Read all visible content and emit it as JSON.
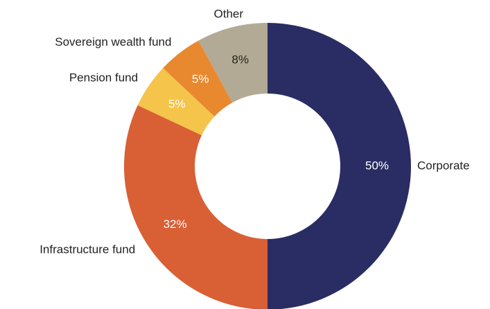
{
  "chart_data": {
    "type": "donut",
    "categories": [
      "Corporate",
      "Infrastructure fund",
      "Pension fund",
      "Sovereign wealth fund",
      "Other"
    ],
    "values": [
      50,
      32,
      5,
      5,
      8
    ],
    "value_labels": [
      "50%",
      "32%",
      "5%",
      "5%",
      "8%"
    ],
    "colors": [
      "#2a2d63",
      "#d95f35",
      "#f5c44a",
      "#e8892f",
      "#b3aa95"
    ]
  }
}
